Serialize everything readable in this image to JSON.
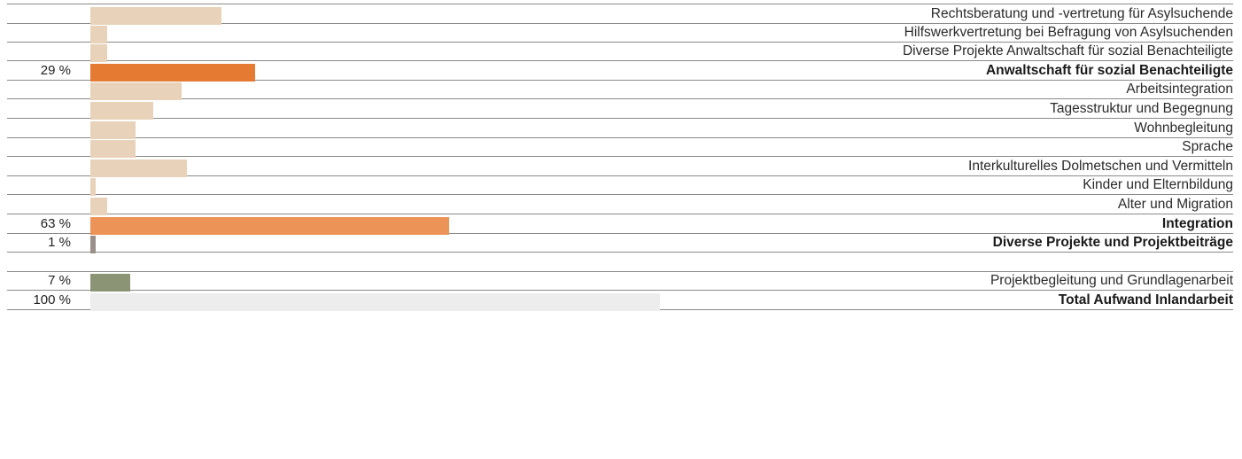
{
  "chart_data": {
    "type": "bar",
    "orientation": "horizontal",
    "xlim": [
      0,
      100
    ],
    "rows": [
      {
        "label": "Rechtsberatung und -vertretung für Asylsuchende",
        "value": 23,
        "pct": "",
        "color": "#e8d2b9",
        "bold": false
      },
      {
        "label": "Hilfswerkvertretung bei Befragung von Asylsuchenden",
        "value": 3,
        "pct": "",
        "color": "#e8d2b9",
        "bold": false
      },
      {
        "label": "Diverse Projekte Anwaltschaft für sozial Benachteiligte",
        "value": 3,
        "pct": "",
        "color": "#e8d2b9",
        "bold": false
      },
      {
        "label": "Anwaltschaft für sozial Benachteiligte",
        "value": 29,
        "pct": "29 %",
        "color": "#e57a33",
        "bold": true
      },
      {
        "label": "Arbeitsintegration",
        "value": 16,
        "pct": "",
        "color": "#e8d2b9",
        "bold": false
      },
      {
        "label": "Tagesstruktur und Begegnung",
        "value": 11,
        "pct": "",
        "color": "#e8d2b9",
        "bold": false
      },
      {
        "label": "Wohnbegleitung",
        "value": 8,
        "pct": "",
        "color": "#e8d2b9",
        "bold": false
      },
      {
        "label": "Sprache",
        "value": 8,
        "pct": "",
        "color": "#e8d2b9",
        "bold": false
      },
      {
        "label": "Interkulturelles Dolmetschen und Vermitteln",
        "value": 17,
        "pct": "",
        "color": "#e8d2b9",
        "bold": false
      },
      {
        "label": "Kinder und Elternbildung",
        "value": 1,
        "pct": "",
        "color": "#e8d2b9",
        "bold": false
      },
      {
        "label": "Alter und Migration",
        "value": 3,
        "pct": "",
        "color": "#e8d2b9",
        "bold": false
      },
      {
        "label": "Integration",
        "value": 63,
        "pct": "63 %",
        "color": "#ec9457",
        "bold": true
      },
      {
        "label": "Diverse Projekte und Projektbeiträge",
        "value": 1,
        "pct": "1 %",
        "color": "#9b8f89",
        "bold": true
      },
      {
        "label": "",
        "value": 0,
        "pct": "",
        "color": "#ffffff",
        "bold": false
      },
      {
        "label": "Projektbegleitung und Grundlagenarbeit",
        "value": 7,
        "pct": "7 %",
        "color": "#8c9476",
        "bold": false
      },
      {
        "label": "Total Aufwand Inlandarbeit",
        "value": 100,
        "pct": "100 %",
        "color": "#ededed",
        "bold": true
      }
    ]
  }
}
